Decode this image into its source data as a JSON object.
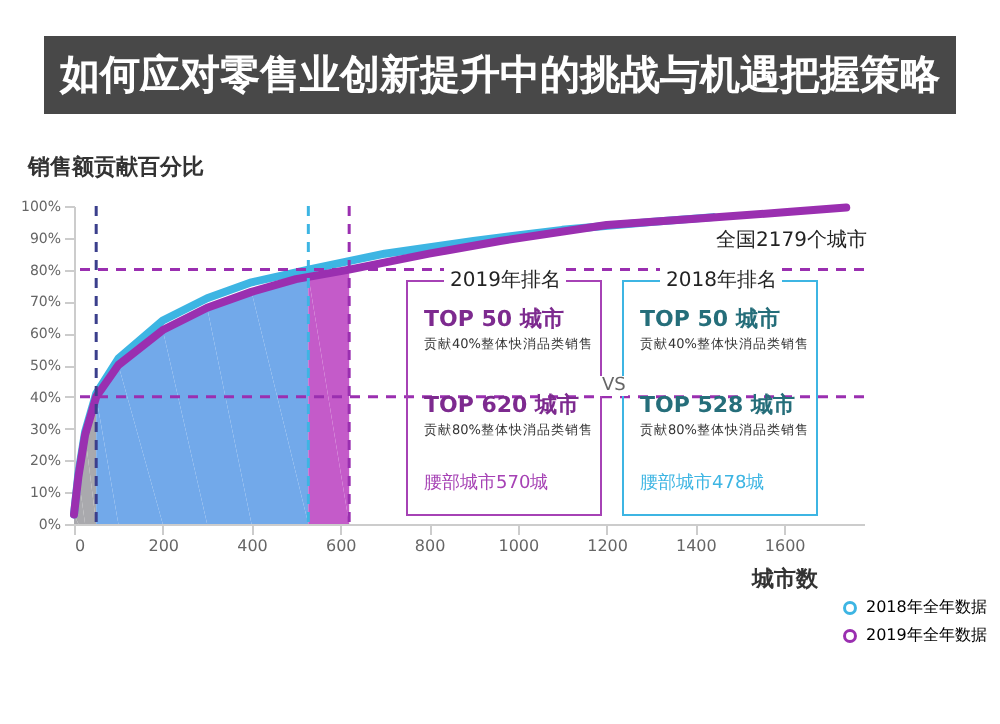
{
  "chart_data": {
    "type": "line",
    "title": "如何应对零售业创新提升中的挑战与机遇把握策略",
    "xlabel": "城市数",
    "ylabel": "销售额贡献百分比",
    "xlim": [
      0,
      1780
    ],
    "xticks": [
      0,
      200,
      400,
      600,
      800,
      1000,
      1200,
      1400,
      1600
    ],
    "ylim": [
      0,
      100
    ],
    "yticks": [
      {
        "value": 0,
        "label": "0%"
      },
      {
        "value": 10,
        "label": "10%"
      },
      {
        "value": 20,
        "label": "20%"
      },
      {
        "value": 30,
        "label": "30%"
      },
      {
        "value": 40,
        "label": "40%"
      },
      {
        "value": 50,
        "label": "50%"
      },
      {
        "value": 60,
        "label": "60%"
      },
      {
        "value": 70,
        "label": "70%"
      },
      {
        "value": 80,
        "label": "80%"
      },
      {
        "value": 90,
        "label": "90%"
      },
      {
        "value": 100,
        "label": "100%"
      }
    ],
    "series": [
      {
        "type": "area",
        "color": "#a9a9ad",
        "x": [
          0,
          10,
          25,
          50
        ],
        "values": [
          3,
          15,
          28,
          40
        ]
      },
      {
        "type": "area",
        "color": "#72a9ea",
        "x": [
          50,
          100,
          200,
          300,
          400,
          528
        ],
        "values": [
          40,
          50,
          61,
          68,
          73,
          78
        ]
      },
      {
        "type": "area",
        "color": "#c45bc9",
        "x": [
          528,
          620
        ],
        "values": [
          78,
          80
        ]
      },
      {
        "name": "2018年全年数据",
        "color": "#3db5e3",
        "x": [
          0,
          10,
          25,
          50,
          100,
          200,
          300,
          400,
          528,
          700,
          900,
          1100,
          1300,
          1440
        ],
        "values": [
          3,
          16,
          29,
          41,
          52,
          64,
          71,
          76,
          80,
          85,
          89,
          92.5,
          95,
          96.5
        ]
      },
      {
        "name": "2019年全年数据",
        "color": "#9a2fb0",
        "x": [
          0,
          10,
          25,
          50,
          100,
          200,
          300,
          400,
          500,
          620,
          800,
          960,
          1200,
          1400,
          1600,
          1740
        ],
        "values": [
          3,
          15,
          28,
          40,
          50,
          61,
          68,
          73,
          77,
          80,
          85,
          89,
          94,
          96,
          98,
          99.5
        ]
      }
    ],
    "ref_lines": [
      {
        "axis": "x",
        "value": 50,
        "color": "#3b3f8c",
        "line_style": "dashed"
      },
      {
        "axis": "x",
        "value": 528,
        "color": "#3db5e3",
        "line_style": "dashed"
      },
      {
        "axis": "x",
        "value": 620,
        "color": "#9a2fb0",
        "line_style": "dashed"
      },
      {
        "axis": "y",
        "value": 40,
        "color": "#9a2fb0",
        "line_style": "dashed"
      },
      {
        "axis": "y",
        "value": 80,
        "color": "#9a2fb0",
        "line_style": "dashed"
      }
    ],
    "annotations": [
      "全国2179个城市",
      "2019年排名",
      "TOP 50 城市",
      "贡献40%整体快消品类销售",
      "TOP 620 城市",
      "贡献80%整体快消品类销售",
      "腰部城市570城",
      "VS",
      "2018年排名",
      "TOP 50 城市",
      "贡献40%整体快消品类销售",
      "TOP 528 城市",
      "贡献80%整体快消品类销售",
      "腰部城市478城"
    ],
    "legend": "bottom right",
    "grid": false,
    "marker": "none",
    "line_style": "solid"
  }
}
